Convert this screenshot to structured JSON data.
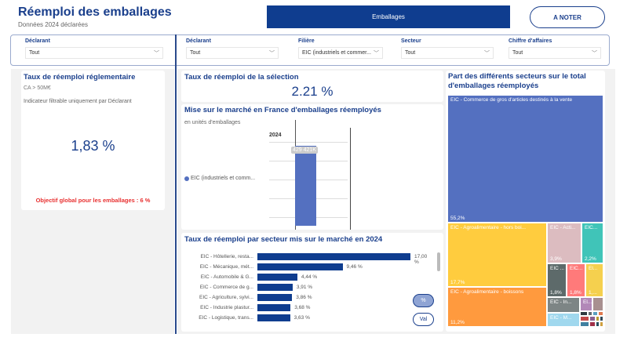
{
  "header": {
    "title": "Réemploi des emballages",
    "subtitle": "Données 2024 déclarées",
    "tab": "Emballages",
    "note_button": "A NOTER"
  },
  "filters_left": [
    {
      "label": "Déclarant",
      "value": "Tout"
    }
  ],
  "filters_right": [
    {
      "label": "Déclarant",
      "value": "Tout"
    },
    {
      "label": "Filière",
      "value": "EIC (industriels et commer..."
    },
    {
      "label": "Secteur",
      "value": "Tout"
    },
    {
      "label": "Chiffre d'affaires",
      "value": "Tout"
    }
  ],
  "regl": {
    "title": "Taux de réemploi réglementaire",
    "sub": "CA > 50M€",
    "note": "Indicateur filtrable uniquement par Déclarant",
    "value": "1,83 %",
    "objective": "Objectif global pour les emballages : 6 %"
  },
  "selection": {
    "title": "Taux de réemploi de la sélection",
    "value": "2.21 %"
  },
  "market": {
    "title": "Mise sur le marché en France d'emballages réemployés",
    "sub": "en unités d'emballages",
    "year": "2024",
    "legend": "EIC (industriels et comm...",
    "bar_label": "429 421K",
    "color": "#5470c0"
  },
  "sectors": {
    "title": "Taux de réemploi par secteur mis sur le marché en 2024",
    "toggle_pct": "%",
    "toggle_val": "Val",
    "rows": [
      {
        "label": "EIC - Hôtellerie, resta...",
        "value": 17.0,
        "text": "17,00 %"
      },
      {
        "label": "EIC - Mécanique, mét...",
        "value": 9.46,
        "text": "9,46 %"
      },
      {
        "label": "EIC - Automobile & G...",
        "value": 4.44,
        "text": "4,44 %"
      },
      {
        "label": "EIC - Commerce de g...",
        "value": 3.91,
        "text": "3,91 %"
      },
      {
        "label": "EIC - Agriculture, sylvi...",
        "value": 3.86,
        "text": "3,86 %"
      },
      {
        "label": "EIC - Industrie plastur...",
        "value": 3.68,
        "text": "3,68 %"
      },
      {
        "label": "EIC - Logistique, trans...",
        "value": 3.63,
        "text": "3,63 %"
      }
    ]
  },
  "treemap": {
    "title": "Part des différents secteurs sur le total d'emballages réemployés",
    "tiles": [
      {
        "label": "EIC - Commerce de gros d'articles destinés à la vente",
        "pct": "55,2%",
        "color": "#5470c0"
      },
      {
        "label": "EIC - Agroalimentaire - hors boi...",
        "pct": "17,7%",
        "color": "#ffcc3e"
      },
      {
        "label": "EIC - Agroalimentaire - boissons",
        "pct": "11,2%",
        "color": "#ff9a3e"
      },
      {
        "label": "EIC - Acti...",
        "pct": "3,9%",
        "color": "#dcbcc0"
      },
      {
        "label": "EIC...",
        "pct": "2,2%",
        "color": "#40c4b8"
      },
      {
        "label": "EIC ...",
        "pct": "1,8%",
        "color": "#5d6a6a"
      },
      {
        "label": "EIC...",
        "pct": "1,8%",
        "color": "#ff7a7a"
      },
      {
        "label": "El...",
        "pct": "1,...",
        "color": "#f5d04e"
      },
      {
        "label": "EIC - In...",
        "pct": "",
        "color": "#7d8585"
      },
      {
        "label": "EIC - M...",
        "pct": "",
        "color": "#a0d8ee"
      },
      {
        "label": "El...",
        "pct": "",
        "color": "#b288b8"
      },
      {
        "label": "",
        "pct": "",
        "color": "#a89090"
      }
    ]
  }
}
